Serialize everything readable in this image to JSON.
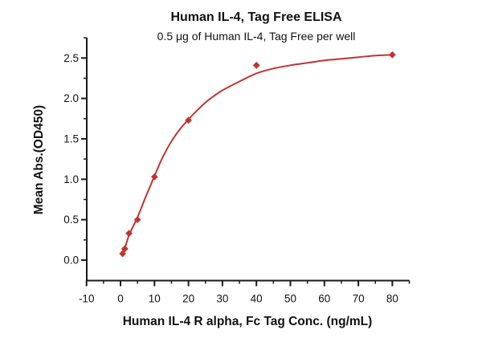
{
  "header": {
    "title": "Human IL-4, Tag Free ELISA",
    "subtitle": "0.5 μg of Human IL-4, Tag Free per well"
  },
  "colors": {
    "curve": "#c0342f",
    "marker": "#c0342f",
    "axis": "#1a1a1a",
    "text": "#111111"
  },
  "chart_data": {
    "type": "scatter",
    "title": "Human IL-4, Tag Free ELISA",
    "subtitle": "0.5 μg of Human IL-4, Tag Free per well",
    "xlabel": "Human IL-4 R alpha, Fc Tag Conc. (ng/mL)",
    "ylabel": "Mean Abs.(OD450)",
    "x": [
      0.625,
      1.25,
      2.5,
      5,
      10,
      20,
      40,
      80
    ],
    "y": [
      0.08,
      0.14,
      0.33,
      0.5,
      1.03,
      1.73,
      2.41,
      2.54
    ],
    "marker": "diamond",
    "line": "4PL-fit",
    "grid": false,
    "legend": "none",
    "xlim": [
      -10,
      85
    ],
    "ylim": [
      -0.25,
      2.75
    ],
    "x_ticks": [
      -10,
      0,
      10,
      20,
      30,
      40,
      50,
      60,
      70,
      80
    ],
    "x_tick_labels": [
      "-10",
      "0",
      "10",
      "20",
      "30",
      "40",
      "50",
      "60",
      "70",
      "80"
    ],
    "x_minor_step": 5,
    "y_ticks": [
      0.0,
      0.5,
      1.0,
      1.5,
      2.0,
      2.5
    ],
    "y_tick_labels": [
      "0.0",
      "0.5",
      "1.0",
      "1.5",
      "2.0",
      "2.5"
    ],
    "y_minor_step": 0.25,
    "fit_curve": [
      [
        0.6,
        0.06
      ],
      [
        1.25,
        0.14
      ],
      [
        2.5,
        0.31
      ],
      [
        3.75,
        0.42
      ],
      [
        5,
        0.53
      ],
      [
        7.5,
        0.79
      ],
      [
        10,
        1.04
      ],
      [
        12.5,
        1.28
      ],
      [
        15,
        1.47
      ],
      [
        17.5,
        1.62
      ],
      [
        20,
        1.74
      ],
      [
        22.5,
        1.85
      ],
      [
        25,
        1.95
      ],
      [
        27.5,
        2.03
      ],
      [
        30,
        2.1
      ],
      [
        35,
        2.21
      ],
      [
        40,
        2.31
      ],
      [
        45,
        2.37
      ],
      [
        50,
        2.41
      ],
      [
        55,
        2.44
      ],
      [
        60,
        2.47
      ],
      [
        65,
        2.49
      ],
      [
        70,
        2.51
      ],
      [
        75,
        2.53
      ],
      [
        80,
        2.54
      ]
    ]
  }
}
